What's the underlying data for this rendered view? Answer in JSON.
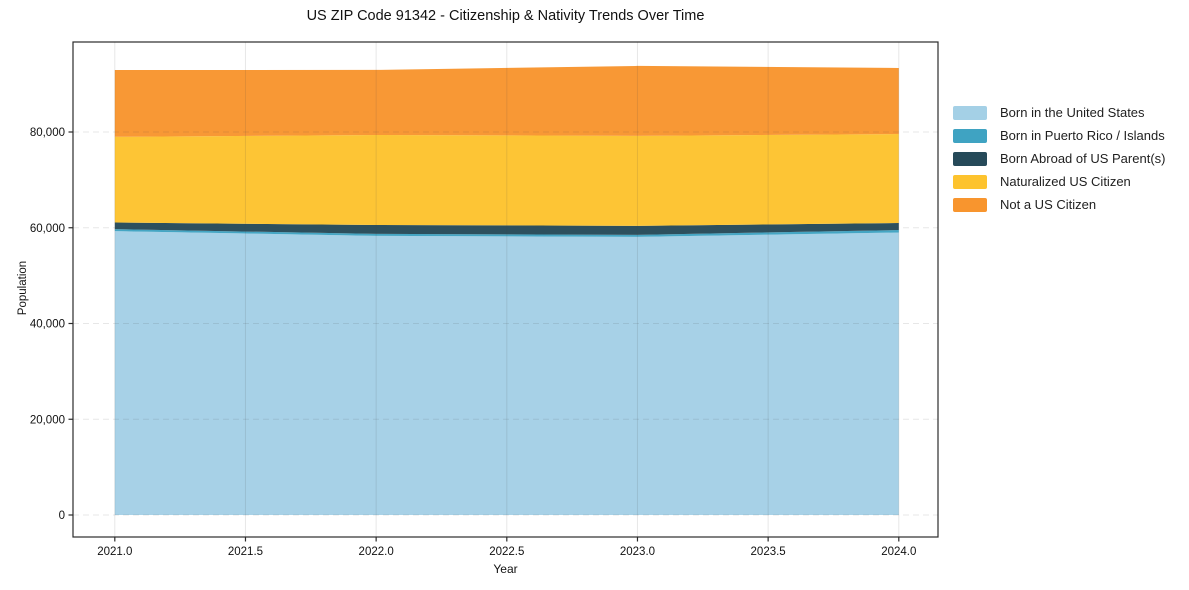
{
  "chart": {
    "title": "US ZIP Code 91342 - Citizenship & Nativity Trends Over Time",
    "xlabel": "Year",
    "ylabel": "Population"
  },
  "legend": {
    "position": "right",
    "items": [
      {
        "label": "Born in the United States",
        "color": "#A4D0E6"
      },
      {
        "label": "Born in Puerto Rico / Islands",
        "color": "#3FA3C2"
      },
      {
        "label": "Born Abroad of US Parent(s)",
        "color": "#264A59"
      },
      {
        "label": "Naturalized US Citizen",
        "color": "#FDC32E"
      },
      {
        "label": "Not a US Citizen",
        "color": "#F8952E"
      }
    ]
  },
  "chart_data": {
    "type": "area",
    "stacked": true,
    "title": "US ZIP Code 91342 - Citizenship & Nativity Trends Over Time",
    "xlabel": "Year",
    "ylabel": "Population",
    "x": [
      2021,
      2022,
      2023,
      2024
    ],
    "series": [
      {
        "name": "Born in the United States",
        "id": "born-in-us",
        "color": "#A4D0E6",
        "values": [
          59300,
          58300,
          58100,
          59000
        ]
      },
      {
        "name": "Born in Puerto Rico / Islands",
        "id": "born-puerto-rico",
        "color": "#3FA3C2",
        "values": [
          400,
          420,
          420,
          520
        ]
      },
      {
        "name": "Born Abroad of US Parent(s)",
        "id": "born-abroad",
        "color": "#264A59",
        "values": [
          1400,
          1850,
          1880,
          1460
        ]
      },
      {
        "name": "Naturalized US Citizen",
        "id": "naturalized",
        "color": "#FDC32E",
        "values": [
          17900,
          18800,
          18800,
          18600
        ]
      },
      {
        "name": "Not a US Citizen",
        "id": "not-citizen",
        "color": "#F8952E",
        "values": [
          13950,
          13600,
          14600,
          13800
        ]
      }
    ],
    "totals": [
      92950,
      92970,
      93800,
      93380
    ],
    "xlim": [
      2020.84,
      2024.15
    ],
    "ylim": [
      -4595,
      98799
    ],
    "x_ticks": {
      "values": [
        2021,
        2021.5,
        2022,
        2022.5,
        2023,
        2023.5,
        2024
      ],
      "labels": [
        "2021.0",
        "2021.5",
        "2022.0",
        "2022.5",
        "2023.0",
        "2023.5",
        "2024.0"
      ]
    },
    "y_ticks": {
      "values": [
        0,
        20000,
        40000,
        60000,
        80000
      ],
      "labels": [
        "0",
        "20,000",
        "40,000",
        "60,000",
        "80,000"
      ]
    },
    "grid": true,
    "grid_color": "rgba(70,70,70,0.13)",
    "spine_color": "#2b2b2b",
    "legend_position": "right of plot"
  }
}
